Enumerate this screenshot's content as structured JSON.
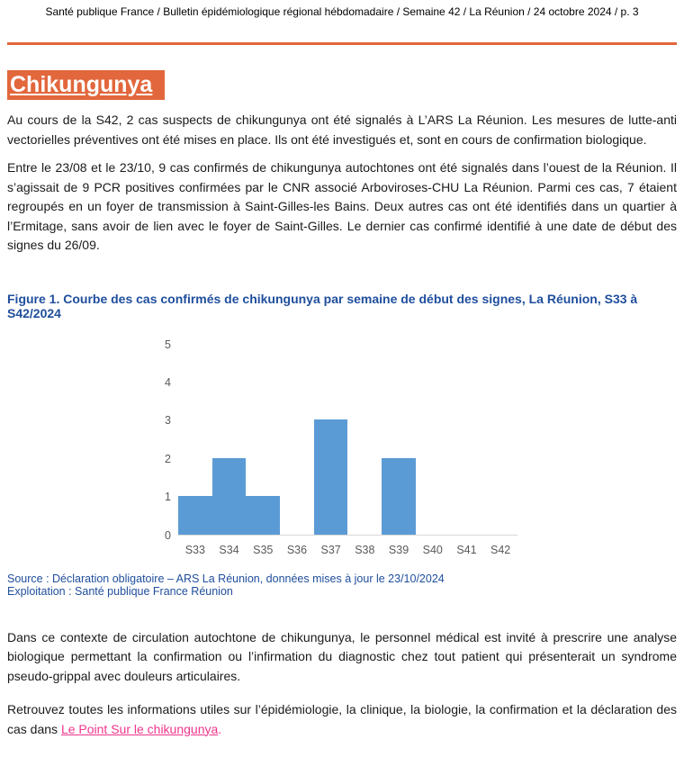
{
  "header": {
    "text": "Santé publique France / Bulletin épidémiologique régional hébdomadaire / Semaine 42 / La Réunion / 24 octobre 2024 / p. 3"
  },
  "title": {
    "text": "Chikungunya"
  },
  "paragraphs": {
    "p1": "Au cours de la S42, 2 cas suspects de chikungunya ont été signalés à L’ARS La Réunion. Les mesures de lutte-anti vectorielles préventives ont été mises en place. Ils ont été investigués et, sont en cours de confirmation biologique.",
    "p2": "Entre le 23/08 et le 23/10, 9 cas confirmés de chikungunya autochtones ont été signalés dans l’ouest de la Réunion. Il s’agissait de 9 PCR positives confirmées par le CNR associé Arboviroses-CHU La Réunion.  Parmi ces cas, 7 étaient regroupés en un foyer de transmission à Saint-Gilles-les Bains. Deux autres cas ont été identifiés dans un quartier à l’Ermitage, sans avoir de lien avec le foyer de Saint-Gilles. Le dernier cas confirmé identifié à une date de début des signes du 26/09.",
    "p3": "Dans ce contexte de circulation autochtone de chikungunya, le personnel médical est invité à prescrire une analyse biologique permettant la confirmation ou l’infirmation du diagnostic chez tout patient qui présenterait un syndrome pseudo-grippal avec douleurs articulaires.",
    "p4_before": "Retrouvez toutes les informations utiles sur l’épidémiologie, la clinique, la biologie, la confirmation et la déclaration des cas dans ",
    "p4_link": "Le Point Sur le chikungunya",
    "p4_after": "."
  },
  "figure": {
    "title": "Figure 1. Courbe des cas confirmés de chikungunya par semaine de début des signes, La Réunion, S33 à S42/2024",
    "source_line1": "Source : Déclaration obligatoire – ARS La Réunion, données mises à jour le 23/10/2024",
    "source_line2": "Exploitation : Santé publique France Réunion"
  },
  "chart_data": {
    "type": "bar",
    "title": "",
    "categories": [
      "S33",
      "S34",
      "S35",
      "S36",
      "S37",
      "S38",
      "S39",
      "S40",
      "S41",
      "S42"
    ],
    "values": [
      1,
      2,
      1,
      0,
      3,
      0,
      2,
      0,
      0,
      0
    ],
    "xlabel": "",
    "ylabel": "",
    "ylim": [
      0,
      5
    ],
    "yticks": [
      0,
      1,
      2,
      3,
      4,
      5
    ],
    "grid": false,
    "legend": "none",
    "bar_gap": 0
  },
  "colors": {
    "accent_orange": "#E2673C",
    "figure_blue": "#1F4E9C",
    "link_pink": "#F0368C",
    "chart_bar": "#5B9BD5",
    "chart_tick": "#595959",
    "chart_axis_line": "#D9D9D9"
  }
}
